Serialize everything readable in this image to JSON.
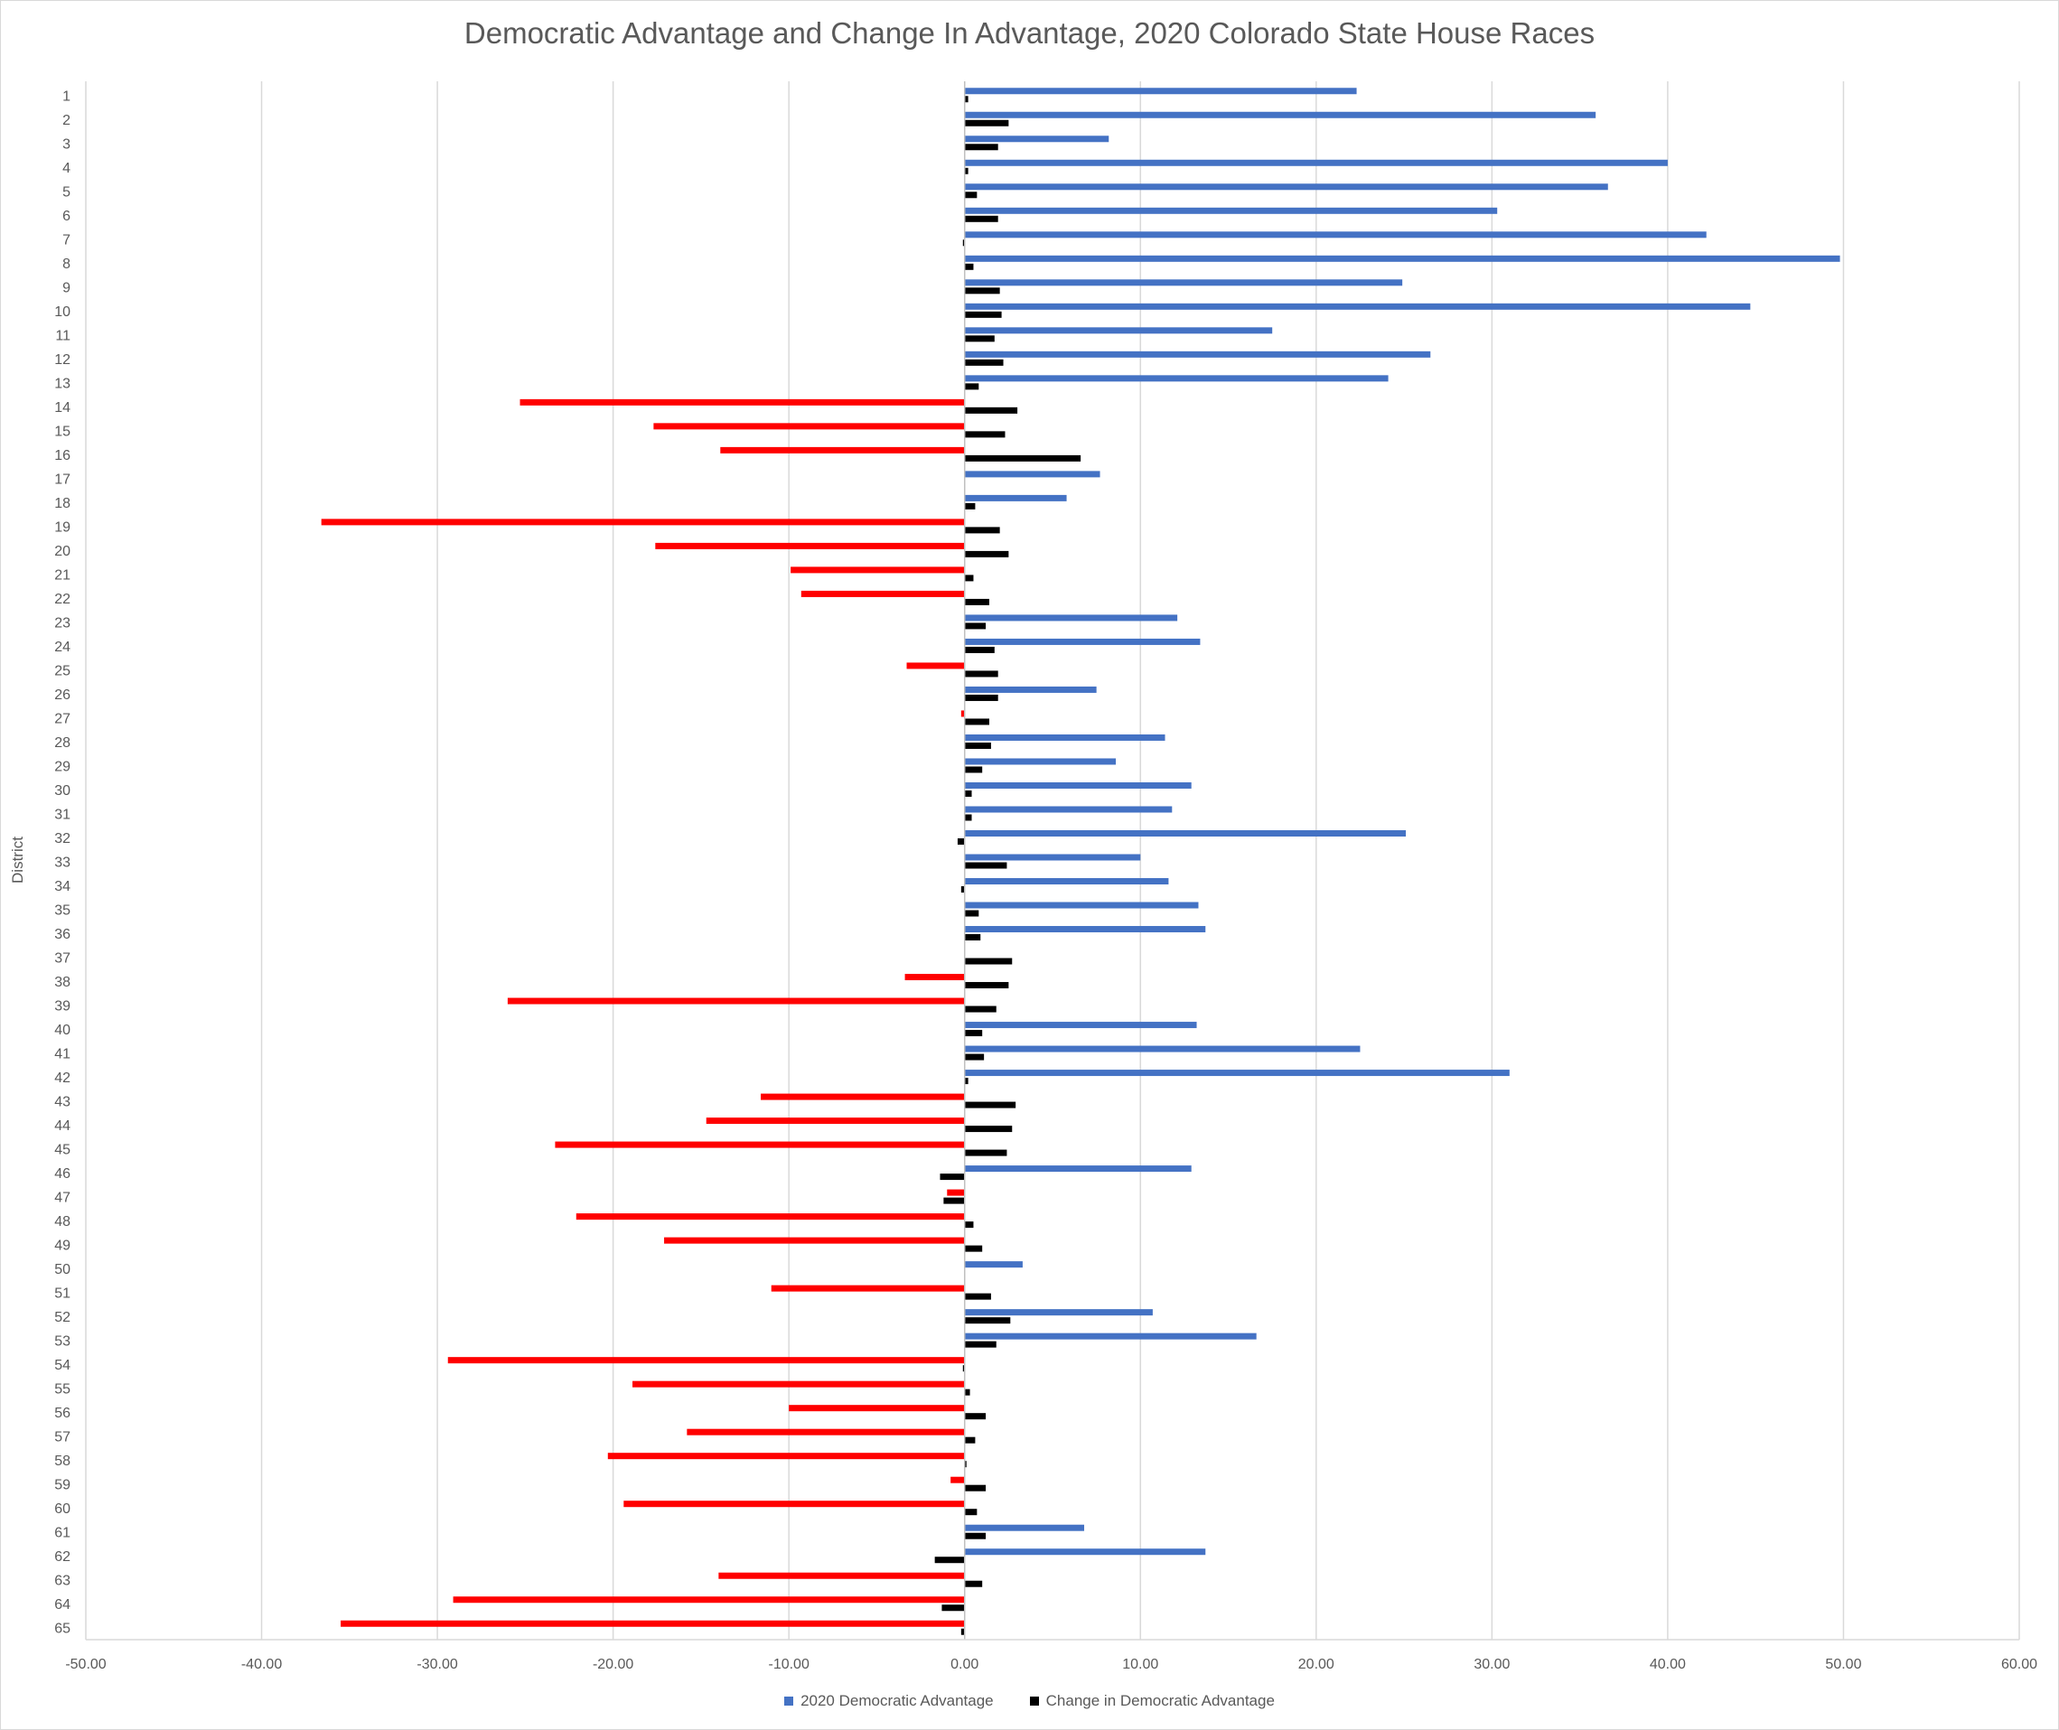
{
  "chart_data": {
    "type": "bar",
    "orientation": "horizontal",
    "title": "Democratic Advantage and Change In Advantage, 2020 Colorado State House Races",
    "ylabel": "District",
    "xlabel": "",
    "xlim": [
      -50,
      60
    ],
    "x_ticks": [
      "-50.00",
      "-40.00",
      "-30.00",
      "-20.00",
      "-10.00",
      "0.00",
      "10.00",
      "20.00",
      "30.00",
      "40.00",
      "50.00",
      "60.00"
    ],
    "grid": true,
    "legend_position": "bottom",
    "categories": [
      "1",
      "2",
      "3",
      "4",
      "5",
      "6",
      "7",
      "8",
      "9",
      "10",
      "11",
      "12",
      "13",
      "14",
      "15",
      "16",
      "17",
      "18",
      "19",
      "20",
      "21",
      "22",
      "23",
      "24",
      "25",
      "26",
      "27",
      "28",
      "29",
      "30",
      "31",
      "32",
      "33",
      "34",
      "35",
      "36",
      "37",
      "38",
      "39",
      "40",
      "41",
      "42",
      "43",
      "44",
      "45",
      "46",
      "47",
      "48",
      "49",
      "50",
      "51",
      "52",
      "53",
      "54",
      "55",
      "56",
      "57",
      "58",
      "59",
      "60",
      "61",
      "62",
      "63",
      "64",
      "65"
    ],
    "series": [
      {
        "name": "2020 Democratic Advantage",
        "color": "#4472c4",
        "negative_color": "#ff0000",
        "values": [
          22.3,
          35.9,
          8.2,
          40.0,
          36.6,
          30.3,
          42.2,
          49.8,
          24.9,
          44.7,
          17.5,
          26.5,
          24.1,
          -25.3,
          -17.7,
          -13.9,
          7.7,
          5.8,
          -36.6,
          -17.6,
          -9.9,
          -9.3,
          12.1,
          13.4,
          -3.3,
          7.5,
          -0.2,
          11.4,
          8.6,
          12.9,
          11.8,
          25.1,
          10.0,
          11.6,
          13.3,
          13.7,
          0.0,
          -3.4,
          -26.0,
          13.2,
          22.5,
          31.0,
          -11.6,
          -14.7,
          -23.3,
          12.9,
          -1.0,
          -22.1,
          -17.1,
          3.3,
          -11.0,
          10.7,
          16.6,
          -29.4,
          -18.9,
          -10.0,
          -15.8,
          -20.3,
          -0.8,
          -19.4,
          6.8,
          13.7,
          -14.0,
          -29.1,
          -35.5
        ]
      },
      {
        "name": "Change in Democratic Advantage",
        "color": "#000000",
        "values": [
          0.2,
          2.5,
          1.9,
          0.2,
          0.7,
          1.9,
          -0.1,
          0.5,
          2.0,
          2.1,
          1.7,
          2.2,
          0.8,
          3.0,
          2.3,
          6.6,
          0.0,
          0.6,
          2.0,
          2.5,
          0.5,
          1.4,
          1.2,
          1.7,
          1.9,
          1.9,
          1.4,
          1.5,
          1.0,
          0.4,
          0.4,
          -0.4,
          2.4,
          -0.2,
          0.8,
          0.9,
          2.7,
          2.5,
          1.8,
          1.0,
          1.1,
          0.2,
          2.9,
          2.7,
          2.4,
          -1.4,
          -1.2,
          0.5,
          1.0,
          0.0,
          1.5,
          2.6,
          1.8,
          -0.1,
          0.3,
          1.2,
          0.6,
          0.1,
          1.2,
          0.7,
          1.2,
          -1.7,
          1.0,
          -1.3,
          -0.2
        ]
      }
    ]
  }
}
